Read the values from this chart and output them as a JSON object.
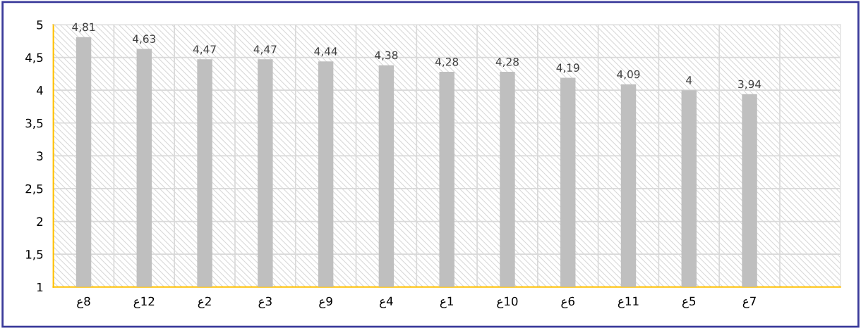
{
  "chart_data": {
    "type": "bar",
    "categories": [
      "ع8",
      "ع12",
      "ع2",
      "ع3",
      "ع9",
      "ع4",
      "ع1",
      "ع10",
      "ع6",
      "ع11",
      "ع5",
      "ع7",
      null
    ],
    "values": [
      4.81,
      4.63,
      4.47,
      4.47,
      4.44,
      4.38,
      4.28,
      4.28,
      4.19,
      4.09,
      4,
      3.94,
      null
    ],
    "value_labels": [
      "4,81",
      "4,63",
      "4,47",
      "4,47",
      "4,44",
      "4,38",
      "4,28",
      "4,28",
      "4,19",
      "4,09",
      "4",
      "3,94",
      null
    ],
    "color": "#bfbfbf",
    "ylim": [
      1,
      5
    ],
    "yticks": [
      1,
      {
        "value": 1.5,
        "label": "1,5"
      },
      2,
      {
        "value": 2.5,
        "label": "2,5"
      },
      3,
      {
        "value": 3.5,
        "label": "3,5"
      },
      4,
      {
        "value": 4.5,
        "label": "4,5"
      },
      5
    ],
    "grid": true
  }
}
